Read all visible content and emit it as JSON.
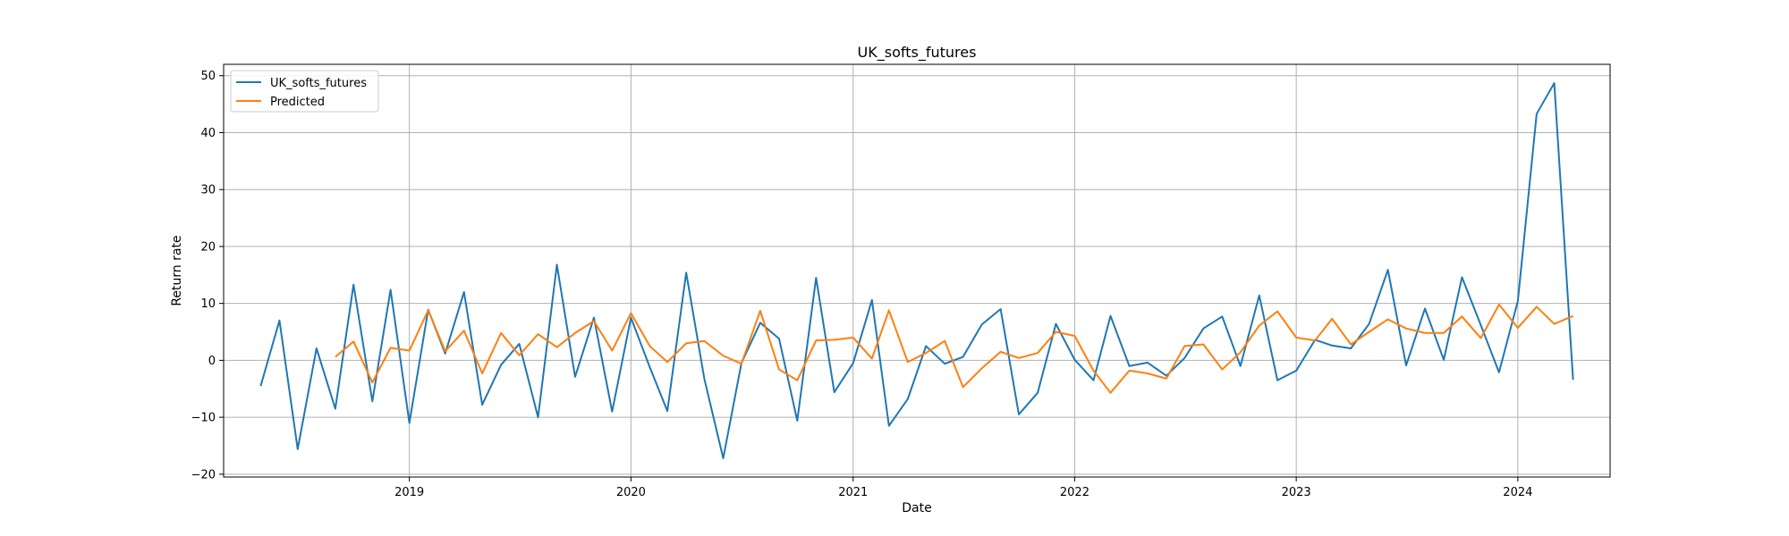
{
  "chart_data": {
    "type": "line",
    "title": "UK_softs_futures",
    "xlabel": "Date",
    "ylabel": "Return rate",
    "x_axis": "date",
    "xlim": [
      "2018-03-01",
      "2024-06-01"
    ],
    "ylim": [
      -20.5,
      52
    ],
    "x_ticks": [
      "2019-01-01",
      "2020-01-01",
      "2021-01-01",
      "2022-01-01",
      "2023-01-01",
      "2024-01-01"
    ],
    "x_tick_labels": [
      "2019",
      "2020",
      "2021",
      "2022",
      "2023",
      "2024"
    ],
    "y_ticks": [
      -20,
      -10,
      0,
      10,
      20,
      30,
      40,
      50
    ],
    "grid": true,
    "legend_position": "top-left",
    "series": [
      {
        "name": "UK_softs_futures",
        "color": "#1f77b4",
        "x": [
          "2018-05-01",
          "2018-06-01",
          "2018-07-01",
          "2018-08-01",
          "2018-09-01",
          "2018-10-01",
          "2018-11-01",
          "2018-12-01",
          "2019-01-01",
          "2019-02-01",
          "2019-03-01",
          "2019-04-01",
          "2019-05-01",
          "2019-06-01",
          "2019-07-01",
          "2019-08-01",
          "2019-09-01",
          "2019-10-01",
          "2019-11-01",
          "2019-12-01",
          "2020-01-01",
          "2020-02-01",
          "2020-03-01",
          "2020-04-01",
          "2020-05-01",
          "2020-06-01",
          "2020-07-01",
          "2020-08-01",
          "2020-09-01",
          "2020-10-01",
          "2020-11-01",
          "2020-12-01",
          "2021-01-01",
          "2021-02-01",
          "2021-03-01",
          "2021-04-01",
          "2021-05-01",
          "2021-06-01",
          "2021-07-01",
          "2021-08-01",
          "2021-09-01",
          "2021-10-01",
          "2021-11-01",
          "2021-12-01",
          "2022-01-01",
          "2022-02-01",
          "2022-03-01",
          "2022-04-01",
          "2022-05-01",
          "2022-06-01",
          "2022-07-01",
          "2022-08-01",
          "2022-09-01",
          "2022-10-01",
          "2022-11-01",
          "2022-12-01",
          "2023-01-01",
          "2023-02-01",
          "2023-03-01",
          "2023-04-01",
          "2023-05-01",
          "2023-06-01",
          "2023-07-01",
          "2023-08-01",
          "2023-09-01",
          "2023-10-01",
          "2023-11-01",
          "2023-12-01",
          "2024-01-01",
          "2024-02-01",
          "2024-03-01",
          "2024-04-01"
        ],
        "values": [
          -4.5,
          7.0,
          -15.6,
          2.1,
          -8.5,
          13.3,
          -7.2,
          12.4,
          -11.0,
          8.9,
          1.2,
          12.0,
          -7.8,
          -0.8,
          2.9,
          -10.0,
          16.8,
          -2.9,
          7.5,
          -9.0,
          7.5,
          -1.2,
          -8.9,
          15.4,
          -3.3,
          -17.2,
          -0.5,
          6.6,
          3.8,
          -10.6,
          14.5,
          -5.6,
          -0.5,
          10.6,
          -11.5,
          -6.8,
          2.5,
          -0.6,
          0.6,
          6.3,
          9.0,
          -9.5,
          -5.7,
          6.4,
          0.1,
          -3.5,
          7.8,
          -1.0,
          -0.4,
          -2.7,
          0.4,
          5.6,
          7.7,
          -1.0,
          11.4,
          -3.5,
          -1.8,
          3.6,
          2.6,
          2.1,
          6.4,
          15.9,
          -0.9,
          9.1,
          0.1,
          14.6,
          6.2,
          -2.1,
          10.4,
          43.3,
          48.7,
          -3.4
        ]
      },
      {
        "name": "Predicted",
        "color": "#ff7f0e",
        "x": [
          "2018-09-01",
          "2018-10-01",
          "2018-11-01",
          "2018-12-01",
          "2019-01-01",
          "2019-02-01",
          "2019-03-01",
          "2019-04-01",
          "2019-05-01",
          "2019-06-01",
          "2019-07-01",
          "2019-08-01",
          "2019-09-01",
          "2019-10-01",
          "2019-11-01",
          "2019-12-01",
          "2020-01-01",
          "2020-02-01",
          "2020-03-01",
          "2020-04-01",
          "2020-05-01",
          "2020-06-01",
          "2020-07-01",
          "2020-08-01",
          "2020-09-01",
          "2020-10-01",
          "2020-11-01",
          "2020-12-01",
          "2021-01-01",
          "2021-02-01",
          "2021-03-01",
          "2021-04-01",
          "2021-05-01",
          "2021-06-01",
          "2021-07-01",
          "2021-08-01",
          "2021-09-01",
          "2021-10-01",
          "2021-11-01",
          "2021-12-01",
          "2022-01-01",
          "2022-02-01",
          "2022-03-01",
          "2022-04-01",
          "2022-05-01",
          "2022-06-01",
          "2022-07-01",
          "2022-08-01",
          "2022-09-01",
          "2022-10-01",
          "2022-11-01",
          "2022-12-01",
          "2023-01-01",
          "2023-02-01",
          "2023-03-01",
          "2023-04-01",
          "2023-05-01",
          "2023-06-01",
          "2023-07-01",
          "2023-08-01",
          "2023-09-01",
          "2023-10-01",
          "2023-11-01",
          "2023-12-01",
          "2024-01-01",
          "2024-02-01",
          "2024-03-01",
          "2024-04-01"
        ],
        "values": [
          0.6,
          3.3,
          -3.9,
          2.2,
          1.7,
          8.8,
          1.6,
          5.2,
          -2.3,
          4.8,
          0.9,
          4.6,
          2.3,
          4.8,
          6.9,
          1.7,
          8.3,
          2.5,
          -0.3,
          3.0,
          3.4,
          0.8,
          -0.6,
          8.7,
          -1.6,
          -3.5,
          3.5,
          3.6,
          4.0,
          0.3,
          8.8,
          -0.3,
          1.3,
          3.4,
          -4.7,
          -1.4,
          1.5,
          0.4,
          1.3,
          5.0,
          4.3,
          -1.8,
          -5.7,
          -1.8,
          -2.3,
          -3.2,
          2.5,
          2.8,
          -1.6,
          1.4,
          6.1,
          8.6,
          4.0,
          3.5,
          7.3,
          2.8,
          5.0,
          7.2,
          5.6,
          4.8,
          4.8,
          7.7,
          3.9,
          9.8,
          5.7,
          9.4,
          6.4,
          7.8
        ]
      }
    ]
  }
}
